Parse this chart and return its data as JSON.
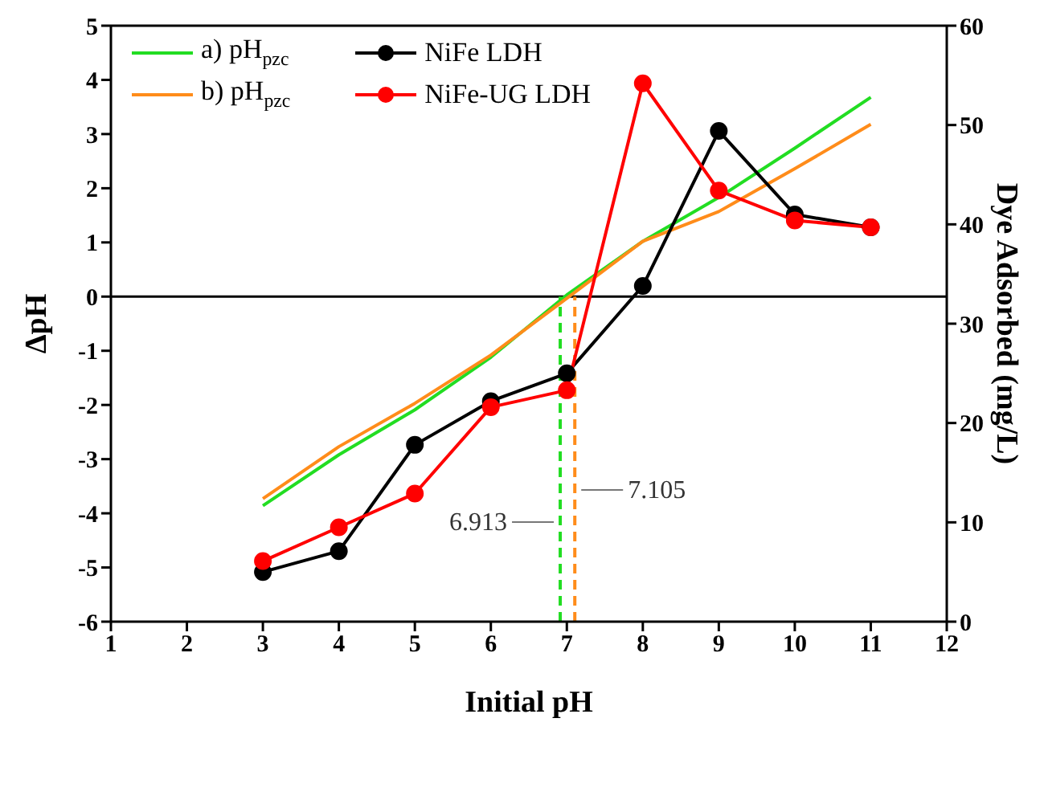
{
  "chart_data": {
    "type": "line",
    "x": [
      3,
      4,
      5,
      6,
      7,
      8,
      9,
      10,
      11
    ],
    "series": [
      {
        "name": "a) pH$_{pzc}$",
        "color": "#22dd22",
        "marker": "none",
        "values": [
          -3.86,
          -2.92,
          -2.09,
          -1.12,
          0.03,
          1.02,
          1.83,
          2.74,
          3.68
        ]
      },
      {
        "name": "b) pH$_{pzc}$",
        "color": "#ff8c1a",
        "marker": "none",
        "values": [
          -3.73,
          -2.77,
          -1.97,
          -1.08,
          -0.03,
          1.02,
          1.57,
          2.36,
          3.18
        ]
      },
      {
        "name": "NiFe LDH",
        "color": "#000000",
        "marker": "circle",
        "axis": "y2",
        "values": [
          5.0,
          7.1,
          17.8,
          22.2,
          25.0,
          33.8,
          49.4,
          41.0,
          39.7
        ]
      },
      {
        "name": "NiFe-UG LDH",
        "color": "#ff0000",
        "marker": "circle",
        "axis": "y2",
        "values": [
          6.1,
          9.5,
          12.9,
          21.6,
          23.3,
          54.2,
          43.4,
          40.4,
          39.7
        ]
      }
    ],
    "xlabel": "Initial pH",
    "ylabel": "ΔpH",
    "y2label": "Dye Adsorbed (mg/L)",
    "xlim": [
      1,
      12
    ],
    "xticks": [
      1,
      2,
      3,
      4,
      5,
      6,
      7,
      8,
      9,
      10,
      11,
      12
    ],
    "ylim": [
      -6,
      5
    ],
    "yticks": [
      -6,
      -5,
      -4,
      -3,
      -2,
      -1,
      0,
      1,
      2,
      3,
      4,
      5
    ],
    "y2lim": [
      0,
      60
    ],
    "y2ticks": [
      0,
      10,
      20,
      30,
      40,
      50,
      60
    ],
    "ref_lines": [
      {
        "axis": "y",
        "value": 0,
        "color": "#000000",
        "line_style": "solid"
      },
      {
        "axis": "x",
        "value": 6.913,
        "label": "6.913",
        "color": "#22dd22",
        "line_style": "dashed"
      },
      {
        "axis": "x",
        "value": 7.105,
        "label": "7.105",
        "color": "#ff8c1a",
        "line_style": "dashed"
      }
    ],
    "legend": "top left"
  }
}
